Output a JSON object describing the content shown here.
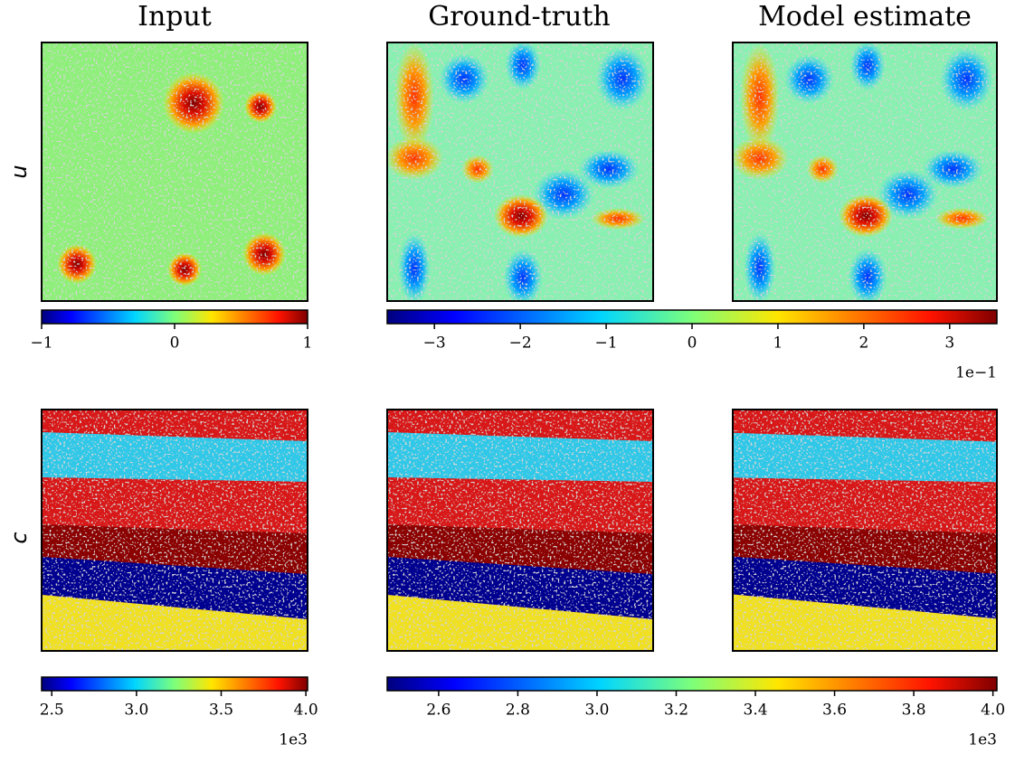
{
  "column_titles": [
    "Input",
    "Ground-truth",
    "Model estimate"
  ],
  "row_labels": [
    "u",
    "c"
  ],
  "colorbars": [
    {
      "lim": [
        -1,
        1
      ],
      "ticks": [
        {
          "value": -1,
          "label": "−1"
        },
        0,
        1
      ]
    },
    {
      "lim": [
        -3.55,
        3.55
      ],
      "ticks": [
        {
          "value": -3,
          "label": "−3"
        },
        {
          "value": -2,
          "label": "−2"
        },
        {
          "value": -1,
          "label": "−1"
        },
        0,
        1,
        2,
        3
      ],
      "offset_label": "1e−1"
    },
    {
      "lim": [
        2.44,
        4.01
      ],
      "ticks": [
        2.5,
        {
          "value": 3,
          "label": "3.0"
        },
        3.5,
        {
          "value": 4,
          "label": "4.0"
        }
      ],
      "offset_label": "1e3"
    },
    {
      "lim": [
        2.47,
        4.01
      ],
      "ticks": [
        2.6,
        2.8,
        {
          "value": 3,
          "label": "3.0"
        },
        3.2,
        3.4,
        3.6,
        3.8,
        {
          "value": 4,
          "label": "4.0"
        }
      ],
      "offset_label": "1e3"
    }
  ]
}
